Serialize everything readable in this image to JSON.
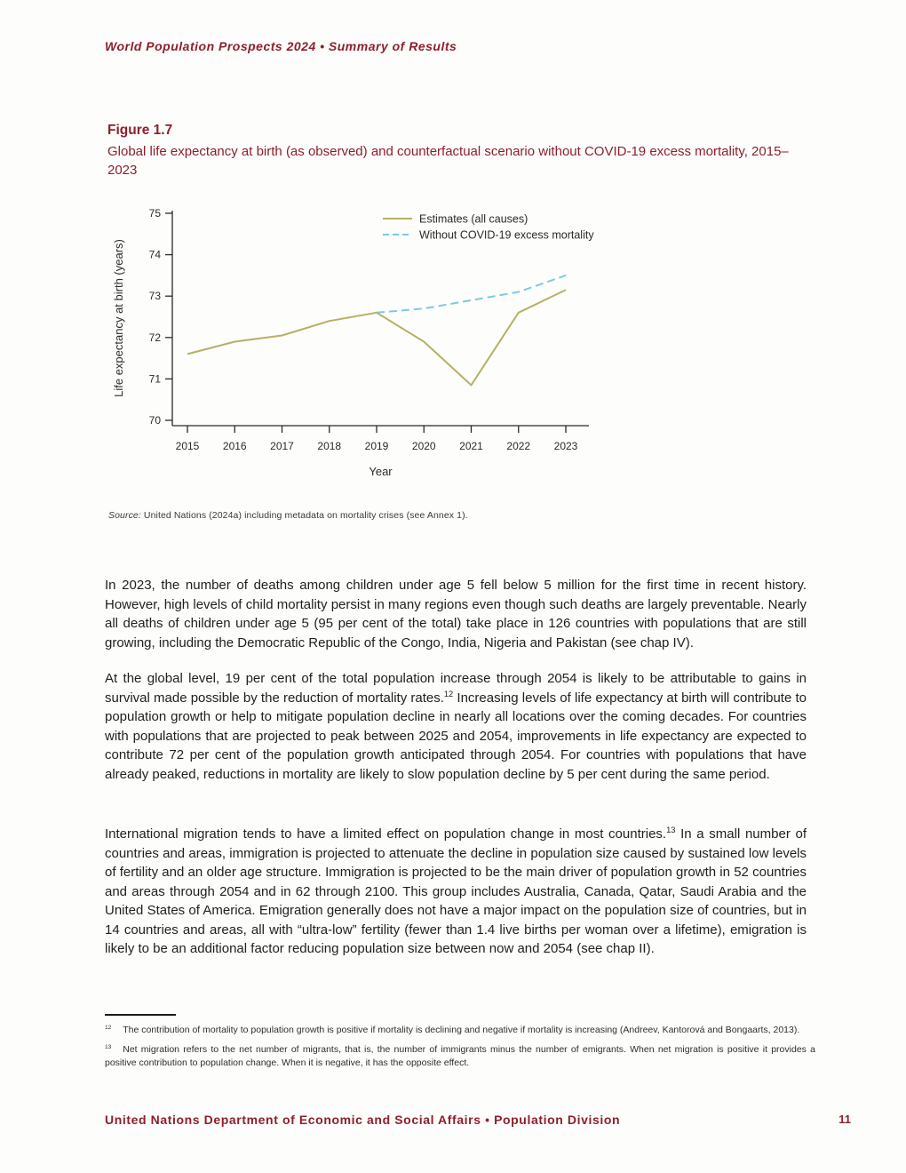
{
  "header": {
    "running_title": "World Population Prospects 2024 • Summary of Results"
  },
  "figure": {
    "label": "Figure 1.7",
    "caption": "Global life expectancy at birth (as observed) and counterfactual scenario without COVID-19 excess mortality, 2015–2023",
    "source_prefix": "Source:",
    "source_text": " United Nations (2024a) including metadata on mortality crises (see Annex 1)."
  },
  "chart_data": {
    "type": "line",
    "x": [
      2015,
      2016,
      2017,
      2018,
      2019,
      2020,
      2021,
      2022,
      2023
    ],
    "series": [
      {
        "name": "Estimates (all causes)",
        "style": "solid",
        "color": "#b6b065",
        "values": [
          71.6,
          71.9,
          72.05,
          72.4,
          72.6,
          71.9,
          70.85,
          72.6,
          73.15
        ]
      },
      {
        "name": "Without COVID-19 excess mortality",
        "style": "dashed",
        "color": "#7ccadd",
        "values": [
          null,
          null,
          null,
          null,
          72.6,
          72.7,
          72.9,
          73.1,
          73.5
        ]
      }
    ],
    "xlabel": "Year",
    "ylabel": "Life expectancy at birth (years)",
    "ylim": [
      70,
      75
    ],
    "yticks": [
      70,
      71,
      72,
      73,
      74,
      75
    ],
    "legend_position": "top-right",
    "grid": false
  },
  "body": {
    "paragraphs": [
      {
        "segments": [
          {
            "text": "In 2023, the number of deaths among children under age 5 fell below 5 million for the first time in recent history. However, high levels of child mortality persist in many regions even though such deaths are largely preventable. Nearly all deaths of children under age 5 (95 per cent of the total) take place in 126 countries with populations that are still growing, including the Democratic Republic of the Congo, India, Nigeria and Pakistan (see chap IV)."
          }
        ]
      },
      {
        "segments": [
          {
            "text": "At the global level, 19 per cent of the total population increase through 2054 is likely to be attributable to gains in survival made possible by the reduction of mortality rates."
          },
          {
            "sup": "12"
          },
          {
            "text": " Increasing levels of life expectancy at birth will contribute to population growth or help to mitigate population decline in nearly all locations over the coming decades. For countries with populations that are projected to peak between 2025 and 2054, improvements in life expectancy are expected to contribute 72 per cent of the population growth anticipated through 2054. For countries with populations that have already peaked, reductions in mortality are likely to slow population decline by 5 per cent during the same period."
          }
        ]
      },
      {
        "segments": [
          {
            "text": "International migration tends to have a limited effect on population change in most countries."
          },
          {
            "sup": "13"
          },
          {
            "text": " In a small number of countries and areas, immigration is projected to attenuate the decline in population size caused by sustained low levels of fertility and an older age structure. Immigration is projected to be the main driver of population growth in 52 countries and areas through 2054 and in 62 through 2100. This group includes Australia, Canada, Qatar, Saudi Arabia and the United States of America. Emigration generally does not have a major impact on the population size of countries, but in 14 countries and areas, all with “ultra-low” fertility (fewer than 1.4 live births per woman over a lifetime), emigration is likely to be an additional factor reducing population size between now and 2054 (see chap II)."
          }
        ]
      }
    ]
  },
  "footnotes": [
    {
      "number": "12",
      "text": "The contribution of mortality to population growth is positive if mortality is declining and negative if mortality is increasing (Andreev, Kantorová and Bongaarts, 2013)."
    },
    {
      "number": "13",
      "text": "Net migration refers to the net number of migrants, that is, the number of immigrants minus the number of emigrants. When net migration is positive it provides a positive contribution to population change. When it is negative, it has the opposite effect."
    }
  ],
  "footer": {
    "text": "United Nations Department of Economic and Social Affairs • Population Division",
    "page_number": "11"
  },
  "colors": {
    "accent_maroon": "#8d1f2c",
    "estimates_line": "#b6b065",
    "counterfactual_line": "#7ccadd"
  }
}
